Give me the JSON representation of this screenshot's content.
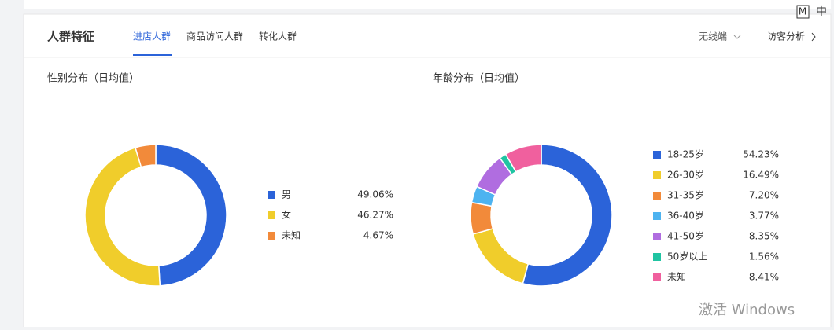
{
  "header": {
    "title": "人群特征",
    "tabs": [
      "进店人群",
      "商品访问人群",
      "转化人群"
    ],
    "device": "无线端",
    "link": "访客分析"
  },
  "chart_data": [
    {
      "type": "donut",
      "title": "性别分布（日均值）",
      "categories": [
        "男",
        "女",
        "未知"
      ],
      "values": [
        49.06,
        46.27,
        4.67
      ],
      "value_labels": [
        "49.06%",
        "46.27%",
        "4.67%"
      ],
      "colors": [
        "#2b63d9",
        "#f0cd2b",
        "#f28a3a"
      ]
    },
    {
      "type": "donut",
      "title": "年龄分布（日均值）",
      "categories": [
        "18-25岁",
        "26-30岁",
        "31-35岁",
        "36-40岁",
        "41-50岁",
        "50岁以上",
        "未知"
      ],
      "values": [
        54.23,
        16.49,
        7.2,
        3.77,
        8.35,
        1.56,
        8.41
      ],
      "value_labels": [
        "54.23%",
        "16.49%",
        "7.20%",
        "3.77%",
        "8.35%",
        "1.56%",
        "8.41%"
      ],
      "colors": [
        "#2b63d9",
        "#f0cd2b",
        "#f28a3a",
        "#4db3f0",
        "#b06de0",
        "#20c4a2",
        "#f0609e"
      ]
    }
  ],
  "overlay": {
    "ime": [
      "M",
      "中"
    ],
    "watermark": "激活 Windows"
  }
}
